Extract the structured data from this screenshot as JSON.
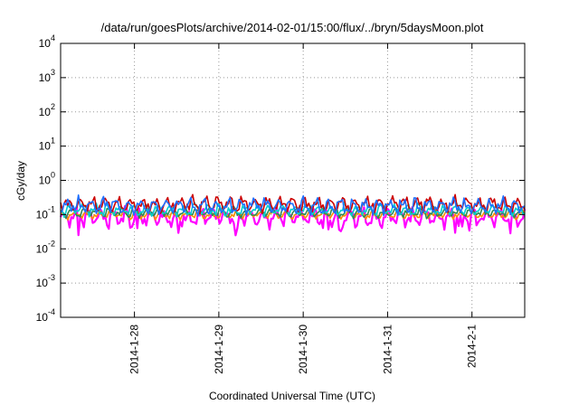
{
  "chart_data": {
    "type": "line",
    "title": "/data/run/goesPlots/archive/2014-02-01/15:00/flux/../bryn/5daysMoon.plot",
    "xlabel": "Coordinated Universal Time (UTC)",
    "ylabel": "cGy/day",
    "yscale": "log",
    "ylim": [
      0.0001,
      10000
    ],
    "xlim": [
      "2014-01-27T03:00",
      "2014-02-01T15:00"
    ],
    "grid": true,
    "y_ticks": [
      {
        "value": 0.0001,
        "base": "10",
        "exp": "-4"
      },
      {
        "value": 0.001,
        "base": "10",
        "exp": "-3"
      },
      {
        "value": 0.01,
        "base": "10",
        "exp": "-2"
      },
      {
        "value": 0.1,
        "base": "10",
        "exp": "-1"
      },
      {
        "value": 1,
        "base": "10",
        "exp": "0"
      },
      {
        "value": 10,
        "base": "10",
        "exp": "1"
      },
      {
        "value": 100,
        "base": "10",
        "exp": "2"
      },
      {
        "value": 1000,
        "base": "10",
        "exp": "3"
      },
      {
        "value": 10000,
        "base": "10",
        "exp": "4"
      }
    ],
    "x_ticks": [
      {
        "value": "2014-01-28T00:00",
        "label": "2014-1-28"
      },
      {
        "value": "2014-01-29T00:00",
        "label": "2014-1-29"
      },
      {
        "value": "2014-01-30T00:00",
        "label": "2014-1-30"
      },
      {
        "value": "2014-01-31T00:00",
        "label": "2014-1-31"
      },
      {
        "value": "2014-02-01T00:00",
        "label": "2014-2-1"
      }
    ],
    "series": [
      {
        "color": "#ff00ff",
        "base": 0.085,
        "amp": 0.35,
        "dips": true
      },
      {
        "color": "#ff8c00",
        "base": 0.1,
        "amp": 0.15,
        "dips": false
      },
      {
        "color": "#2e8b57",
        "base": 0.115,
        "amp": 0.18,
        "dips": false
      },
      {
        "color": "#00ced1",
        "base": 0.14,
        "amp": 0.22,
        "dips": false
      },
      {
        "color": "#cc0000",
        "base": 0.2,
        "amp": 0.28,
        "dips": false
      },
      {
        "color": "#1e6fff",
        "base": 0.18,
        "amp": 0.3,
        "dips": false
      }
    ]
  }
}
